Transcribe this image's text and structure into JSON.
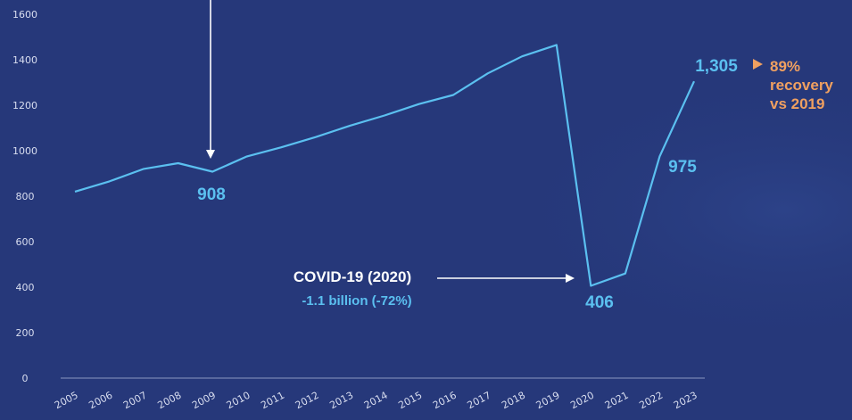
{
  "chart_data": {
    "type": "line",
    "x": [
      "2005",
      "2006",
      "2007",
      "2008",
      "2009",
      "2010",
      "2011",
      "2012",
      "2013",
      "2014",
      "2015",
      "2016",
      "2017",
      "2018",
      "2019",
      "2020",
      "2021",
      "2022",
      "2023"
    ],
    "series": [
      {
        "values": [
          820,
          865,
          920,
          945,
          908,
          975,
          1015,
          1060,
          1110,
          1155,
          1205,
          1245,
          1340,
          1415,
          1465,
          406,
          460,
          975,
          1305
        ]
      }
    ],
    "y_ticks": [
      "0",
      "200",
      "400",
      "600",
      "800",
      "1000",
      "1200",
      "1400",
      "1600"
    ],
    "ylim": [
      0,
      1600
    ],
    "grid": false,
    "annotations": {
      "v2009": "908",
      "v2020": "406",
      "v2022": "975",
      "v2023": "1,305",
      "covid_title": "COVID-19 (2020)",
      "covid_sub": "-1.1 billion (-72%)",
      "recovery_line1": "89%",
      "recovery_line2": "recovery",
      "recovery_line3": "vs 2019"
    },
    "colors": {
      "background": "#26387a",
      "line": "#5bc0f0",
      "label": "#5bc0f0",
      "recovery": "#f0a060",
      "arrow": "#ffffff"
    }
  }
}
